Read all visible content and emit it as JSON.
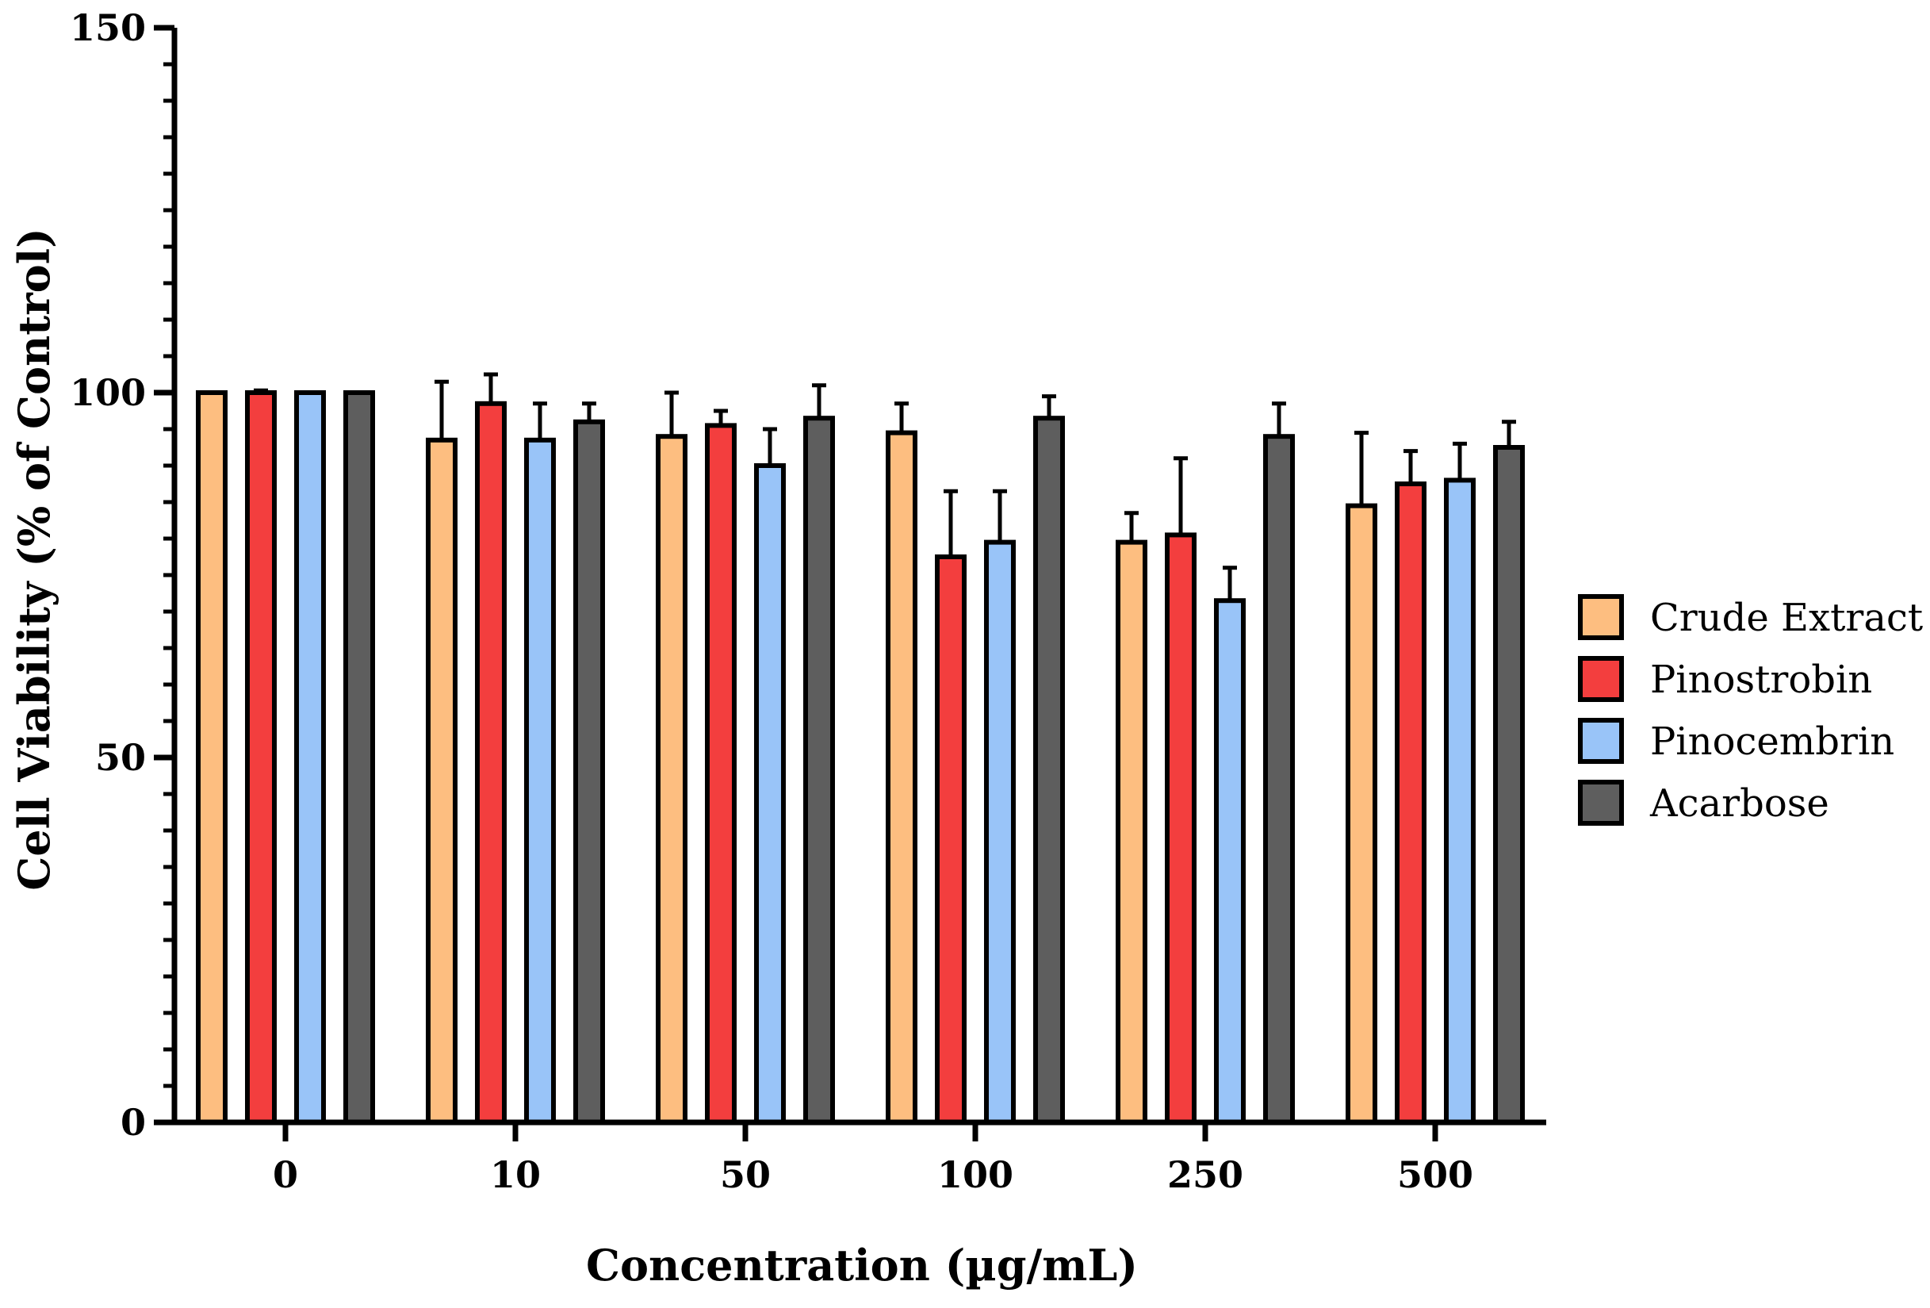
{
  "chart_data": {
    "type": "bar",
    "title": "",
    "xlabel": "Concentration (µg/mL)",
    "ylabel": "Cell Viability (% of Control)",
    "ylim": [
      0,
      150
    ],
    "y_ticks": [
      "0",
      "50",
      "100",
      "150"
    ],
    "categories": [
      "0",
      "10",
      "50",
      "100",
      "250",
      "500"
    ],
    "legend_position": "right",
    "series": [
      {
        "name": "Crude Extract",
        "color": "#FDBE80",
        "values": [
          100,
          93.5,
          94,
          94.5,
          79.5,
          84.5
        ],
        "errors": [
          0,
          8,
          6,
          4,
          4,
          10
        ]
      },
      {
        "name": "Pinostrobin",
        "color": "#F33E3E",
        "values": [
          100,
          98.5,
          95.5,
          77.5,
          80.5,
          87.5
        ],
        "errors": [
          0.3,
          4,
          2,
          9,
          10.5,
          4.5
        ]
      },
      {
        "name": "Pinocembrin",
        "color": "#99C4F8",
        "values": [
          100,
          93.5,
          90,
          79.5,
          71.5,
          88
        ],
        "errors": [
          0,
          5,
          5,
          7,
          4.5,
          5
        ]
      },
      {
        "name": "Acarbose",
        "color": "#5E5E5E",
        "values": [
          100,
          96,
          96.5,
          96.5,
          94,
          92.5
        ],
        "errors": [
          0,
          2.5,
          4.5,
          3,
          4.5,
          3.5
        ]
      }
    ]
  }
}
